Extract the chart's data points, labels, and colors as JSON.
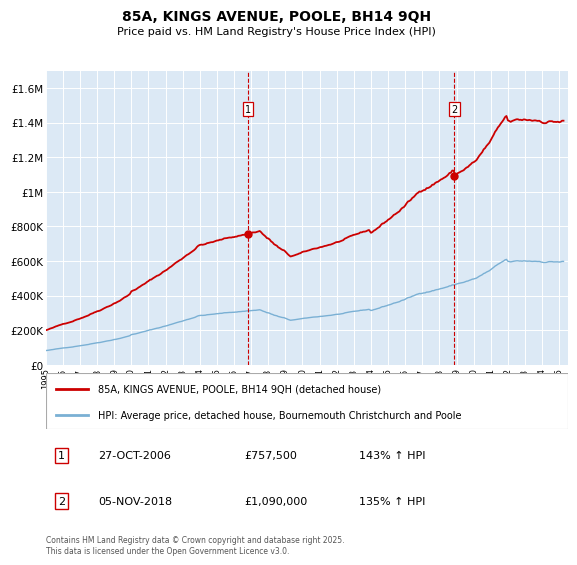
{
  "title": "85A, KINGS AVENUE, POOLE, BH14 9QH",
  "subtitle": "Price paid vs. HM Land Registry's House Price Index (HPI)",
  "plot_bg_color": "#dce9f5",
  "ylim": [
    0,
    1700000
  ],
  "yticks": [
    0,
    200000,
    400000,
    600000,
    800000,
    1000000,
    1200000,
    1400000,
    1600000
  ],
  "ytick_labels": [
    "£0",
    "£200K",
    "£400K",
    "£600K",
    "£800K",
    "£1M",
    "£1.2M",
    "£1.4M",
    "£1.6M"
  ],
  "xlim_start": 1995.0,
  "xlim_end": 2025.5,
  "xtick_years": [
    1995,
    1996,
    1997,
    1998,
    1999,
    2000,
    2001,
    2002,
    2003,
    2004,
    2005,
    2006,
    2007,
    2008,
    2009,
    2010,
    2011,
    2012,
    2013,
    2014,
    2015,
    2016,
    2017,
    2018,
    2019,
    2020,
    2021,
    2022,
    2023,
    2024,
    2025
  ],
  "house_color": "#cc0000",
  "hpi_color": "#7ab0d4",
  "sale1_year": 2006.82,
  "sale1_price_val": 757500,
  "sale2_year": 2018.87,
  "sale2_price_val": 1090000,
  "sale1_date": "27-OCT-2006",
  "sale1_price": "£757,500",
  "sale1_hpi": "143% ↑ HPI",
  "sale2_date": "05-NOV-2018",
  "sale2_price": "£1,090,000",
  "sale2_hpi": "135% ↑ HPI",
  "legend_label1": "85A, KINGS AVENUE, POOLE, BH14 9QH (detached house)",
  "legend_label2": "HPI: Average price, detached house, Bournemouth Christchurch and Poole",
  "footer": "Contains HM Land Registry data © Crown copyright and database right 2025.\nThis data is licensed under the Open Government Licence v3.0."
}
